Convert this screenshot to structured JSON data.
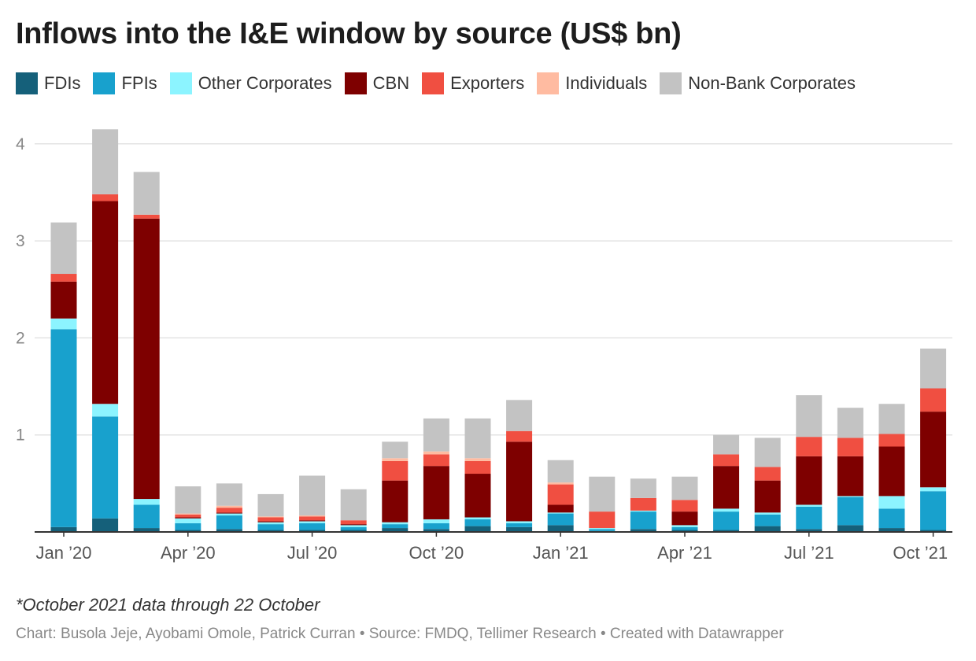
{
  "chart_data": {
    "type": "bar",
    "stacked": true,
    "title": "Inflows into the I&E window by source (US$ bn)",
    "xlabel": "",
    "ylabel": "",
    "ylim": [
      0,
      4.2
    ],
    "yticks": [
      1,
      2,
      3,
      4
    ],
    "grid": true,
    "legend_position": "top",
    "x_tick_labels": [
      {
        "index": 0,
        "label": "Jan ’20"
      },
      {
        "index": 3,
        "label": "Apr ’20"
      },
      {
        "index": 6,
        "label": "Jul ’20"
      },
      {
        "index": 9,
        "label": "Oct ’20"
      },
      {
        "index": 12,
        "label": "Jan ’21"
      },
      {
        "index": 15,
        "label": "Apr ’21"
      },
      {
        "index": 18,
        "label": "Jul ’21"
      },
      {
        "index": 21,
        "label": "Oct ’21"
      }
    ],
    "categories": [
      "Jan 2020",
      "Feb 2020",
      "Mar 2020",
      "Apr 2020",
      "May 2020",
      "Jun 2020",
      "Jul 2020",
      "Aug 2020",
      "Sep 2020",
      "Oct 2020",
      "Nov 2020",
      "Dec 2020",
      "Jan 2021",
      "Feb 2021",
      "Mar 2021",
      "Apr 2021",
      "May 2021",
      "Jun 2021",
      "Jul 2021",
      "Aug 2021",
      "Sep 2021",
      "Oct 2021"
    ],
    "series": [
      {
        "name": "FDIs",
        "color": "#15607a",
        "values": [
          0.05,
          0.14,
          0.04,
          0.02,
          0.03,
          0.02,
          0.02,
          0.02,
          0.04,
          0.03,
          0.06,
          0.05,
          0.07,
          0.01,
          0.03,
          0.02,
          0.02,
          0.06,
          0.03,
          0.07,
          0.04,
          0.02
        ]
      },
      {
        "name": "FPIs",
        "color": "#18a1cd",
        "values": [
          2.04,
          1.05,
          0.24,
          0.07,
          0.14,
          0.06,
          0.07,
          0.03,
          0.04,
          0.06,
          0.07,
          0.04,
          0.12,
          0.02,
          0.18,
          0.03,
          0.19,
          0.12,
          0.23,
          0.29,
          0.2,
          0.4
        ]
      },
      {
        "name": "Other Corporates",
        "color": "#8cf4ff",
        "values": [
          0.11,
          0.13,
          0.06,
          0.05,
          0.02,
          0.02,
          0.02,
          0.02,
          0.02,
          0.04,
          0.02,
          0.02,
          0.01,
          0.01,
          0.01,
          0.02,
          0.03,
          0.02,
          0.02,
          0.01,
          0.13,
          0.04
        ]
      },
      {
        "name": "CBN",
        "color": "#7e0000",
        "values": [
          0.38,
          2.09,
          2.89,
          0.01,
          0.01,
          0.01,
          0.01,
          0.01,
          0.43,
          0.55,
          0.45,
          0.82,
          0.08,
          0.0,
          0.0,
          0.14,
          0.44,
          0.33,
          0.5,
          0.41,
          0.51,
          0.78
        ]
      },
      {
        "name": "Exporters",
        "color": "#f04f41",
        "values": [
          0.08,
          0.07,
          0.04,
          0.03,
          0.05,
          0.04,
          0.04,
          0.04,
          0.2,
          0.12,
          0.13,
          0.11,
          0.21,
          0.17,
          0.13,
          0.12,
          0.12,
          0.14,
          0.2,
          0.19,
          0.13,
          0.24
        ]
      },
      {
        "name": "Individuals",
        "color": "#ffbba1",
        "values": [
          0.0,
          0.0,
          0.0,
          0.01,
          0.02,
          0.01,
          0.01,
          0.0,
          0.03,
          0.03,
          0.03,
          0.0,
          0.02,
          0.0,
          0.0,
          0.0,
          0.0,
          0.0,
          0.0,
          0.0,
          0.0,
          0.0
        ]
      },
      {
        "name": "Non-Bank Corporates",
        "color": "#c3c3c3",
        "values": [
          0.53,
          0.67,
          0.44,
          0.28,
          0.23,
          0.23,
          0.41,
          0.32,
          0.17,
          0.34,
          0.41,
          0.32,
          0.23,
          0.36,
          0.2,
          0.24,
          0.2,
          0.3,
          0.43,
          0.31,
          0.31,
          0.41
        ]
      }
    ]
  },
  "footnote": "*October 2021 data through 22 October",
  "credits": "Chart: Busola Jeje, Ayobami Omole, Patrick Curran • Source: FMDQ, Tellimer Research • Created with Datawrapper"
}
